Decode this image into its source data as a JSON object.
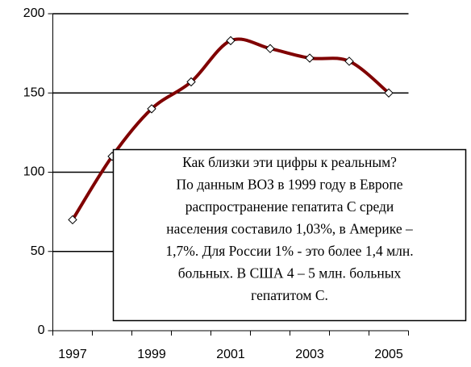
{
  "chart_data": {
    "type": "line",
    "categories": [
      "1997",
      null,
      "1999",
      null,
      "2001",
      null,
      "2003",
      null,
      "2005"
    ],
    "values": [
      70,
      110,
      140,
      157,
      183,
      178,
      172,
      170,
      150
    ],
    "color": "#800000",
    "marker": "diamond",
    "smooth": true,
    "ylim": [
      0,
      200
    ],
    "yticks": [
      0,
      50,
      100,
      150,
      200
    ],
    "grid": true,
    "annotation": [
      "Как близки эти цифры к реальным?",
      "По данным ВОЗ в 1999 году в Европе",
      "распространение гепатита С среди",
      "населения составило 1,03%, в Америке –",
      "1,7%. Для России 1% - это более 1,4 млн.",
      "больных. В США 4 – 5 млн. больных",
      "гепатитом С."
    ]
  }
}
